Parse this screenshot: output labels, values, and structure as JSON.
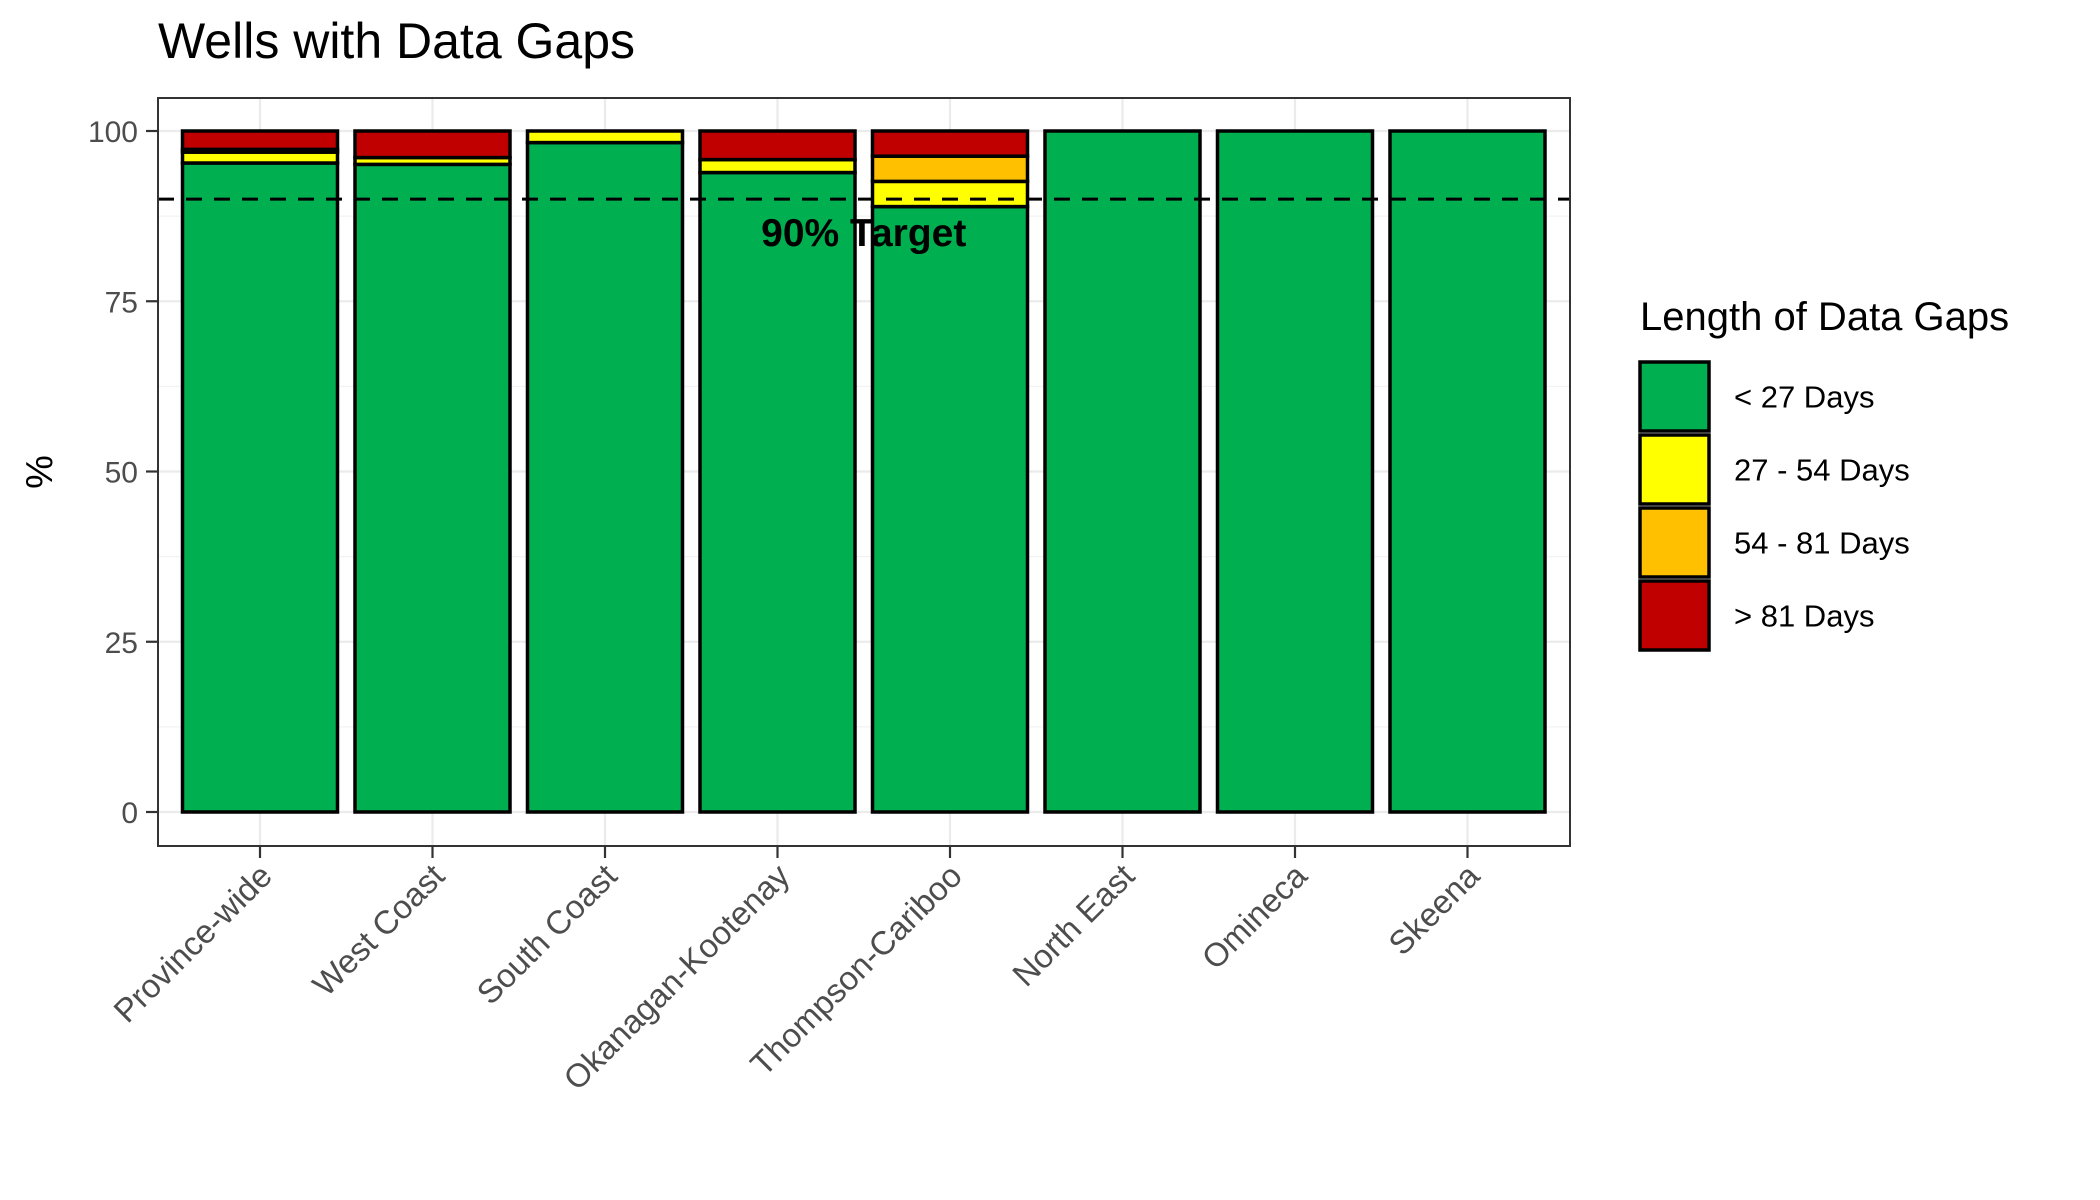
{
  "chart_data": {
    "type": "bar",
    "stacked": true,
    "title": "Wells with Data Gaps",
    "ylabel": "%",
    "xlabel": "",
    "ylim": [
      0,
      100
    ],
    "yticks": [
      0,
      25,
      50,
      75,
      100
    ],
    "grid": true,
    "categories": [
      "Province-wide",
      "West Coast",
      "South Coast",
      "Okanagan-Kootenay",
      "Thompson-Cariboo",
      "North East",
      "Omineca",
      "Skeena"
    ],
    "series": [
      {
        "name": "< 27 Days",
        "color": "#00AF50",
        "values": [
          95.3,
          95.1,
          98.3,
          93.9,
          88.9,
          100,
          100,
          100
        ]
      },
      {
        "name": "27 - 54 Days",
        "color": "#FFFF00",
        "values": [
          1.6,
          1.0,
          1.7,
          1.9,
          3.7,
          0,
          0,
          0
        ]
      },
      {
        "name": "54 - 81 Days",
        "color": "#FFC000",
        "values": [
          0.4,
          0,
          0,
          0,
          3.7,
          0,
          0,
          0
        ]
      },
      {
        "name": "> 81 Days",
        "color": "#C00000",
        "values": [
          2.7,
          3.9,
          0,
          4.2,
          3.7,
          0,
          0,
          0
        ]
      }
    ],
    "legend": {
      "title": "Length of Data Gaps",
      "position": "right"
    },
    "reference_line": {
      "value": 90,
      "label": "90% Target",
      "style": "dashed"
    }
  }
}
